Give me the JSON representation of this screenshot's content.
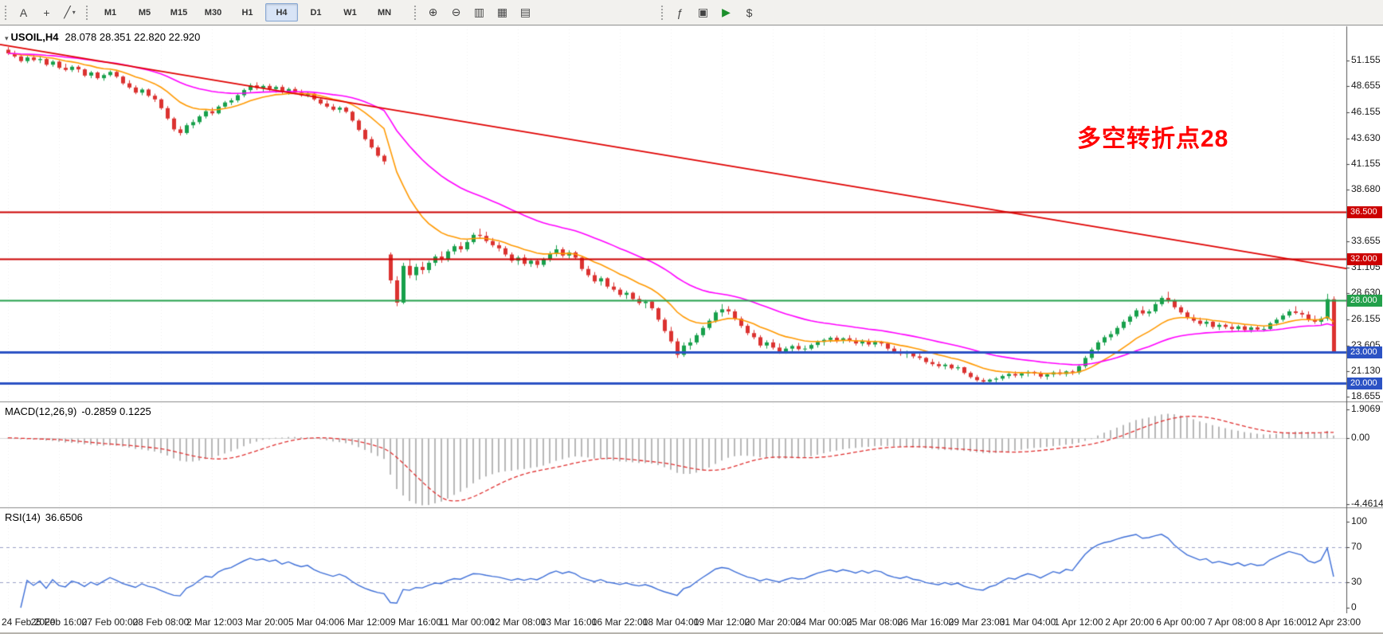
{
  "toolbar": {
    "tool_groups": [
      {
        "kind": "icons",
        "items": [
          {
            "name": "cursor-tool-button",
            "glyph": "A"
          },
          {
            "name": "crosshair-tool-button",
            "glyph": "+"
          },
          {
            "name": "draw-tools-dropdown",
            "glyph": "╱",
            "caret": "▾"
          }
        ]
      },
      {
        "kind": "timeframes",
        "timeframes": [
          "M1",
          "M5",
          "M15",
          "M30",
          "H1",
          "H4",
          "D1",
          "W1",
          "MN"
        ],
        "active": "H4"
      },
      {
        "kind": "icons",
        "items": [
          {
            "name": "zoom-in-button",
            "glyph": "⊕"
          },
          {
            "name": "zoom-out-button",
            "glyph": "⊖"
          },
          {
            "name": "new-chart-button",
            "glyph": "▥"
          },
          {
            "name": "tile-windows-button",
            "glyph": "▦"
          },
          {
            "name": "cascade-windows-button",
            "glyph": "▤"
          }
        ]
      },
      {
        "kind": "icons",
        "items": [
          {
            "name": "indicators-button",
            "glyph": "ƒ"
          },
          {
            "name": "templates-button",
            "glyph": "▣"
          },
          {
            "name": "auto-trading-button",
            "glyph": "▶"
          },
          {
            "name": "new-order-button",
            "glyph": "$"
          }
        ]
      }
    ]
  },
  "chart": {
    "title": "USOIL,H4",
    "ohlc": "28.078 28.351 22.820 22.920",
    "annotation": {
      "text": "多空转折点28",
      "color": "#FF0000"
    },
    "price_axis_labels": [
      "51.155",
      "48.655",
      "46.155",
      "43.630",
      "41.155",
      "38.680",
      "33.655",
      "31.105",
      "28.630",
      "26.155",
      "23.605",
      "21.130",
      "18.655"
    ],
    "levels": [
      {
        "label": "36.500",
        "price": 36.5,
        "color": "#CC0000",
        "width": 2
      },
      {
        "label": "32.000",
        "price": 32.0,
        "color": "#CC0000",
        "width": 2
      },
      {
        "label": "28.000",
        "price": 28.0,
        "color": "#22A04A",
        "width": 2
      },
      {
        "label": "23.000",
        "price": 23.0,
        "color": "#2B52C4",
        "width": 3
      },
      {
        "label": "20.000",
        "price": 20.0,
        "color": "#2B52C4",
        "width": 3
      }
    ],
    "trendline": {
      "color": "#E00000",
      "start_price": 52.7,
      "end_price": 31.05
    },
    "colors": {
      "up": "#17A04B",
      "down": "#DB3230",
      "ma_fast": "#FF9900",
      "ma_slow": "#FF00FF",
      "grid": "#F0F0F0"
    }
  },
  "macd": {
    "label": "MACD(12,26,9)",
    "values": "-0.2859 0.1225",
    "axis_labels": [
      "1.9069",
      "0.00",
      "-4.4614"
    ],
    "colors": {
      "histogram": "#B8B8B8",
      "signal": "#E03030"
    }
  },
  "rsi": {
    "label": "RSI(14)",
    "value": "36.6506",
    "axis_labels": [
      "100",
      "70",
      "30",
      "0"
    ],
    "levels": [
      70,
      30
    ],
    "colors": {
      "line": "#3E6FD8",
      "level": "#9A9FC6"
    }
  },
  "chart_data": {
    "type": "candlestick",
    "symbol": "USOIL",
    "timeframe": "H4",
    "ylim": [
      18.2,
      54.4
    ],
    "current_bar": {
      "open": 28.078,
      "high": 28.351,
      "low": 22.82,
      "close": 22.92
    },
    "x_tick_every": 8,
    "x_tick_labels": [
      "24 Feb 2020",
      "25 Feb 16:00",
      "27 Feb 00:00",
      "28 Feb 08:00",
      "2 Mar 12:00",
      "3 Mar 20:00",
      "5 Mar 04:00",
      "6 Mar 12:00",
      "9 Mar 16:00",
      "11 Mar 00:00",
      "12 Mar 08:00",
      "13 Mar 16:00",
      "16 Mar 22:00",
      "18 Mar 04:00",
      "19 Mar 12:00",
      "20 Mar 20:00",
      "24 Mar 00:00",
      "25 Mar 08:00",
      "26 Mar 16:00",
      "29 Mar 23:00",
      "31 Mar 04:00",
      "1 Apr 12:00",
      "2 Apr 20:00",
      "6 Apr 00:00",
      "7 Apr 08:00",
      "8 Apr 16:00",
      "12 Apr 23:00"
    ],
    "candles": [
      [
        52.2,
        52.45,
        51.7,
        51.85
      ],
      [
        51.85,
        52.1,
        51.4,
        51.55
      ],
      [
        51.55,
        51.75,
        50.95,
        51.1
      ],
      [
        51.1,
        51.6,
        50.9,
        51.45
      ],
      [
        51.45,
        51.7,
        51.05,
        51.2
      ],
      [
        51.2,
        51.55,
        50.9,
        51.3
      ],
      [
        51.3,
        51.45,
        50.6,
        50.75
      ],
      [
        50.75,
        51.2,
        50.55,
        51.05
      ],
      [
        51.05,
        51.15,
        50.3,
        50.45
      ],
      [
        50.45,
        50.85,
        50.1,
        50.25
      ],
      [
        50.25,
        50.7,
        50.05,
        50.55
      ],
      [
        50.55,
        50.7,
        50.0,
        50.3
      ],
      [
        50.3,
        50.4,
        49.55,
        49.7
      ],
      [
        49.7,
        50.15,
        49.45,
        50.0
      ],
      [
        50.0,
        50.1,
        49.3,
        49.45
      ],
      [
        49.45,
        49.9,
        49.2,
        49.75
      ],
      [
        49.75,
        50.2,
        49.6,
        50.05
      ],
      [
        50.05,
        50.15,
        49.45,
        49.6
      ],
      [
        49.6,
        49.7,
        48.8,
        48.95
      ],
      [
        48.95,
        49.25,
        48.4,
        48.55
      ],
      [
        48.55,
        48.75,
        47.9,
        48.05
      ],
      [
        48.05,
        48.5,
        47.8,
        48.35
      ],
      [
        48.35,
        48.45,
        47.6,
        47.75
      ],
      [
        47.75,
        47.95,
        47.15,
        47.4
      ],
      [
        47.4,
        47.5,
        46.4,
        46.55
      ],
      [
        46.55,
        46.75,
        45.4,
        45.55
      ],
      [
        45.55,
        45.7,
        44.3,
        44.5
      ],
      [
        44.5,
        44.8,
        43.9,
        44.15
      ],
      [
        44.15,
        45.1,
        44.0,
        44.9
      ],
      [
        44.9,
        45.45,
        44.6,
        45.2
      ],
      [
        45.2,
        45.9,
        45.0,
        45.75
      ],
      [
        45.75,
        46.4,
        45.55,
        46.25
      ],
      [
        46.25,
        46.6,
        45.85,
        46.05
      ],
      [
        46.05,
        46.85,
        45.95,
        46.7
      ],
      [
        46.7,
        47.25,
        46.5,
        47.1
      ],
      [
        47.1,
        47.5,
        46.85,
        47.3
      ],
      [
        47.3,
        47.95,
        47.1,
        47.8
      ],
      [
        47.8,
        48.45,
        47.6,
        48.3
      ],
      [
        48.3,
        48.95,
        48.1,
        48.75
      ],
      [
        48.75,
        49.05,
        48.3,
        48.5
      ],
      [
        48.5,
        48.85,
        48.15,
        48.7
      ],
      [
        48.7,
        48.9,
        48.2,
        48.4
      ],
      [
        48.4,
        48.75,
        48.05,
        48.6
      ],
      [
        48.6,
        48.8,
        47.95,
        48.1
      ],
      [
        48.1,
        48.55,
        47.85,
        48.4
      ],
      [
        48.4,
        48.6,
        47.9,
        48.05
      ],
      [
        48.05,
        48.35,
        47.65,
        47.8
      ],
      [
        47.8,
        48.15,
        47.6,
        47.95
      ],
      [
        47.95,
        48.05,
        47.25,
        47.4
      ],
      [
        47.4,
        47.6,
        46.85,
        47.0
      ],
      [
        47.0,
        47.3,
        46.55,
        46.7
      ],
      [
        46.7,
        46.95,
        46.25,
        46.4
      ],
      [
        46.4,
        46.75,
        46.1,
        46.6
      ],
      [
        46.6,
        46.7,
        46.05,
        46.2
      ],
      [
        46.2,
        46.3,
        45.2,
        45.35
      ],
      [
        45.35,
        45.5,
        44.3,
        44.45
      ],
      [
        44.45,
        44.6,
        43.4,
        43.55
      ],
      [
        43.55,
        43.8,
        42.6,
        42.75
      ],
      [
        42.75,
        42.95,
        41.8,
        41.95
      ],
      [
        41.95,
        42.1,
        41.1,
        41.4
      ],
      [
        32.4,
        32.6,
        29.6,
        29.9
      ],
      [
        29.9,
        30.3,
        27.4,
        27.75
      ],
      [
        27.75,
        31.6,
        27.6,
        31.3
      ],
      [
        31.3,
        31.9,
        30.1,
        30.4
      ],
      [
        30.4,
        31.5,
        29.9,
        31.2
      ],
      [
        31.2,
        31.7,
        30.5,
        30.9
      ],
      [
        30.9,
        31.8,
        30.6,
        31.6
      ],
      [
        31.6,
        32.4,
        31.3,
        32.2
      ],
      [
        32.2,
        32.7,
        31.6,
        31.9
      ],
      [
        31.9,
        32.9,
        31.7,
        32.7
      ],
      [
        32.7,
        33.4,
        32.4,
        33.2
      ],
      [
        33.2,
        33.6,
        32.6,
        32.9
      ],
      [
        32.9,
        33.8,
        32.7,
        33.6
      ],
      [
        33.6,
        34.5,
        33.4,
        34.3
      ],
      [
        34.3,
        34.9,
        33.9,
        34.2
      ],
      [
        34.2,
        34.6,
        33.5,
        33.7
      ],
      [
        33.7,
        34.0,
        33.1,
        33.3
      ],
      [
        33.3,
        33.6,
        32.7,
        33.0
      ],
      [
        33.0,
        33.2,
        32.2,
        32.4
      ],
      [
        32.4,
        32.6,
        31.6,
        31.8
      ],
      [
        31.8,
        32.3,
        31.4,
        32.1
      ],
      [
        32.1,
        32.4,
        31.3,
        31.5
      ],
      [
        31.5,
        32.0,
        31.2,
        31.8
      ],
      [
        31.8,
        31.95,
        31.1,
        31.4
      ],
      [
        31.4,
        32.1,
        31.2,
        31.9
      ],
      [
        31.9,
        32.7,
        31.7,
        32.5
      ],
      [
        32.5,
        33.3,
        32.2,
        32.9
      ],
      [
        32.9,
        33.1,
        32.1,
        32.3
      ],
      [
        32.3,
        32.8,
        32.0,
        32.6
      ],
      [
        32.6,
        32.75,
        31.9,
        32.1
      ],
      [
        32.1,
        32.2,
        30.8,
        31.0
      ],
      [
        31.0,
        31.3,
        30.2,
        30.4
      ],
      [
        30.4,
        30.7,
        29.6,
        29.8
      ],
      [
        29.8,
        30.3,
        29.4,
        30.1
      ],
      [
        30.1,
        30.2,
        29.1,
        29.3
      ],
      [
        29.3,
        29.7,
        28.8,
        29.0
      ],
      [
        29.0,
        29.2,
        28.3,
        28.5
      ],
      [
        28.5,
        28.9,
        28.1,
        28.7
      ],
      [
        28.7,
        28.8,
        27.9,
        28.1
      ],
      [
        28.1,
        28.4,
        27.5,
        27.7
      ],
      [
        27.7,
        28.0,
        27.2,
        27.85
      ],
      [
        27.85,
        27.95,
        27.0,
        27.2
      ],
      [
        27.2,
        27.3,
        25.9,
        26.1
      ],
      [
        26.1,
        26.3,
        24.8,
        25.0
      ],
      [
        25.0,
        25.4,
        23.8,
        24.0
      ],
      [
        24.0,
        24.3,
        22.4,
        22.7
      ],
      [
        22.7,
        23.9,
        22.5,
        23.6
      ],
      [
        23.6,
        24.3,
        23.2,
        23.9
      ],
      [
        23.9,
        24.8,
        23.7,
        24.6
      ],
      [
        24.6,
        25.5,
        24.4,
        25.3
      ],
      [
        25.3,
        26.2,
        25.1,
        26.0
      ],
      [
        26.0,
        27.0,
        25.8,
        26.8
      ],
      [
        26.8,
        27.6,
        26.4,
        27.1
      ],
      [
        27.1,
        27.4,
        26.6,
        26.9
      ],
      [
        26.9,
        27.1,
        26.0,
        26.2
      ],
      [
        26.2,
        26.4,
        25.3,
        25.5
      ],
      [
        25.5,
        25.7,
        24.6,
        24.8
      ],
      [
        24.8,
        25.1,
        24.2,
        24.4
      ],
      [
        24.4,
        24.6,
        23.4,
        23.6
      ],
      [
        23.6,
        24.1,
        23.3,
        23.9
      ],
      [
        23.9,
        24.2,
        23.2,
        23.4
      ],
      [
        23.4,
        23.8,
        22.8,
        23.0
      ],
      [
        23.0,
        23.5,
        22.8,
        23.3
      ],
      [
        23.3,
        23.7,
        23.0,
        23.55
      ],
      [
        23.55,
        23.85,
        23.1,
        23.25
      ],
      [
        23.25,
        23.6,
        22.95,
        23.3
      ],
      [
        23.3,
        23.8,
        23.15,
        23.65
      ],
      [
        23.65,
        24.1,
        23.4,
        23.95
      ],
      [
        23.95,
        24.3,
        23.6,
        24.15
      ],
      [
        24.15,
        24.5,
        23.9,
        24.35
      ],
      [
        24.35,
        24.55,
        23.85,
        24.05
      ],
      [
        24.05,
        24.4,
        23.8,
        24.3
      ],
      [
        24.3,
        24.6,
        23.9,
        24.1
      ],
      [
        24.1,
        24.35,
        23.6,
        23.8
      ],
      [
        23.8,
        24.2,
        23.55,
        24.05
      ],
      [
        24.05,
        24.25,
        23.5,
        23.7
      ],
      [
        23.7,
        24.1,
        23.45,
        23.95
      ],
      [
        23.95,
        24.05,
        23.55,
        23.8
      ],
      [
        23.8,
        23.9,
        23.1,
        23.3
      ],
      [
        23.3,
        23.55,
        22.8,
        23.0
      ],
      [
        23.0,
        23.3,
        22.6,
        22.8
      ],
      [
        22.8,
        23.1,
        22.4,
        22.95
      ],
      [
        22.95,
        23.05,
        22.35,
        22.55
      ],
      [
        22.55,
        22.8,
        22.2,
        22.4
      ],
      [
        22.4,
        22.5,
        21.8,
        22.0
      ],
      [
        22.0,
        22.3,
        21.6,
        21.8
      ],
      [
        21.8,
        22.05,
        21.4,
        21.6
      ],
      [
        21.6,
        21.9,
        21.3,
        21.75
      ],
      [
        21.75,
        21.85,
        21.25,
        21.4
      ],
      [
        21.4,
        21.7,
        21.2,
        21.5
      ],
      [
        21.5,
        21.55,
        20.8,
        20.95
      ],
      [
        20.95,
        21.1,
        20.4,
        20.55
      ],
      [
        20.55,
        20.75,
        20.1,
        20.25
      ],
      [
        20.25,
        20.45,
        19.95,
        20.1
      ],
      [
        20.1,
        20.4,
        19.9,
        20.3
      ],
      [
        20.3,
        20.55,
        20.05,
        20.4
      ],
      [
        20.4,
        20.8,
        20.2,
        20.65
      ],
      [
        20.65,
        21.0,
        20.4,
        20.85
      ],
      [
        20.85,
        21.1,
        20.5,
        20.7
      ],
      [
        20.7,
        21.05,
        20.45,
        20.9
      ],
      [
        20.9,
        21.2,
        20.6,
        21.05
      ],
      [
        21.05,
        21.15,
        20.7,
        20.9
      ],
      [
        20.9,
        21.1,
        20.4,
        20.6
      ],
      [
        20.6,
        20.95,
        20.3,
        20.8
      ],
      [
        20.8,
        21.15,
        20.55,
        21.0
      ],
      [
        21.0,
        21.3,
        20.7,
        20.85
      ],
      [
        20.85,
        21.2,
        20.6,
        21.1
      ],
      [
        21.1,
        21.25,
        20.75,
        21.0
      ],
      [
        21.0,
        21.8,
        20.8,
        21.6
      ],
      [
        21.6,
        22.6,
        21.4,
        22.4
      ],
      [
        22.4,
        23.4,
        22.2,
        23.2
      ],
      [
        23.2,
        24.1,
        23.0,
        23.9
      ],
      [
        23.9,
        24.6,
        23.6,
        24.4
      ],
      [
        24.4,
        25.0,
        24.1,
        24.7
      ],
      [
        24.7,
        25.5,
        24.5,
        25.3
      ],
      [
        25.3,
        26.1,
        25.1,
        25.9
      ],
      [
        25.9,
        26.6,
        25.6,
        26.4
      ],
      [
        26.4,
        27.2,
        26.2,
        27.0
      ],
      [
        27.0,
        27.4,
        26.5,
        26.7
      ],
      [
        26.7,
        27.1,
        26.4,
        26.9
      ],
      [
        26.9,
        27.8,
        26.7,
        27.6
      ],
      [
        27.6,
        28.4,
        27.4,
        28.2
      ],
      [
        28.2,
        28.8,
        27.7,
        27.9
      ],
      [
        27.9,
        28.1,
        27.1,
        27.3
      ],
      [
        27.3,
        27.5,
        26.6,
        26.8
      ],
      [
        26.8,
        27.0,
        26.1,
        26.3
      ],
      [
        26.3,
        26.6,
        25.8,
        26.0
      ],
      [
        26.0,
        26.3,
        25.5,
        25.7
      ],
      [
        25.7,
        26.1,
        25.4,
        25.9
      ],
      [
        25.9,
        26.0,
        25.2,
        25.4
      ],
      [
        25.4,
        25.8,
        25.1,
        25.6
      ],
      [
        25.6,
        25.75,
        25.2,
        25.4
      ],
      [
        25.4,
        25.7,
        25.0,
        25.2
      ],
      [
        25.2,
        25.6,
        25.0,
        25.45
      ],
      [
        25.45,
        25.65,
        24.9,
        25.1
      ],
      [
        25.1,
        25.5,
        24.85,
        25.35
      ],
      [
        25.35,
        25.55,
        25.0,
        25.15
      ],
      [
        25.15,
        25.45,
        24.95,
        25.2
      ],
      [
        25.2,
        25.9,
        25.05,
        25.75
      ],
      [
        25.75,
        26.3,
        25.55,
        26.1
      ],
      [
        26.1,
        26.7,
        25.9,
        26.5
      ],
      [
        26.5,
        27.1,
        26.3,
        26.9
      ],
      [
        26.9,
        27.4,
        26.6,
        26.75
      ],
      [
        26.75,
        27.0,
        26.3,
        26.6
      ],
      [
        26.6,
        26.9,
        25.9,
        26.1
      ],
      [
        26.1,
        26.5,
        25.7,
        25.9
      ],
      [
        25.9,
        26.4,
        25.6,
        26.2
      ],
      [
        26.2,
        28.6,
        26.0,
        28.08
      ],
      [
        28.078,
        28.351,
        22.82,
        22.92
      ]
    ]
  }
}
